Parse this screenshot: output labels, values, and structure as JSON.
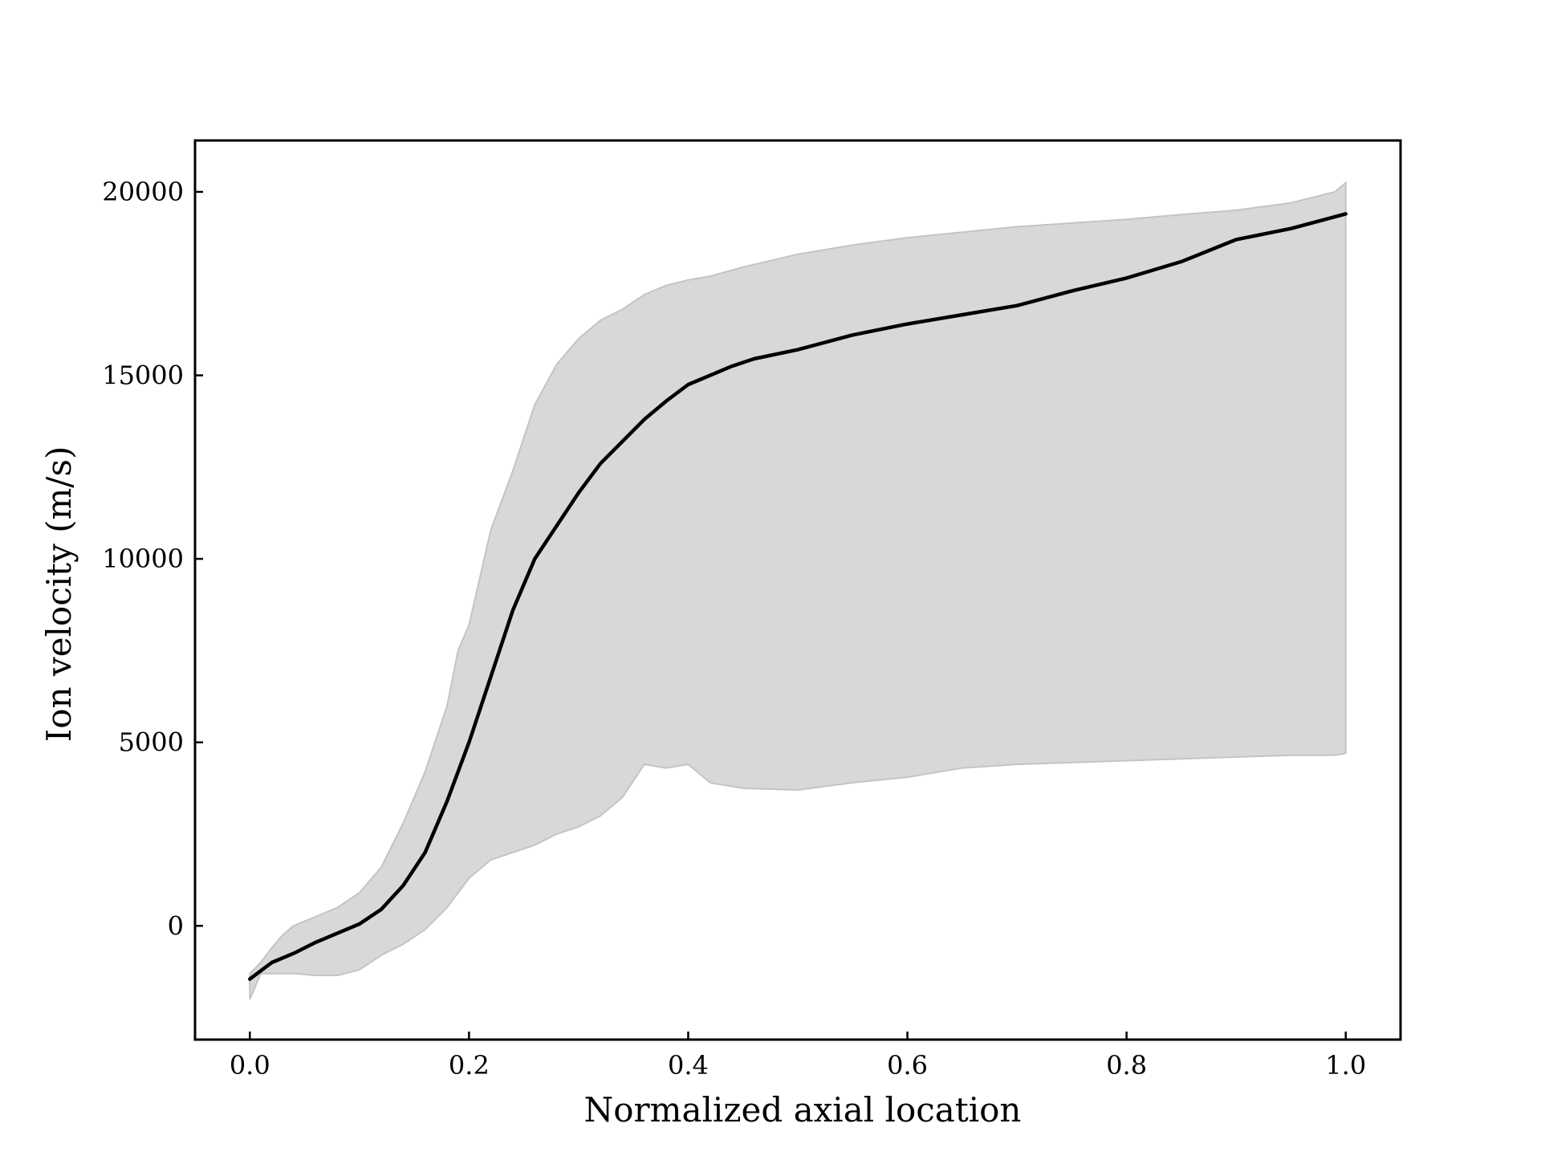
{
  "chart_data": {
    "type": "area",
    "title": "",
    "xlabel": "Normalized axial location",
    "ylabel": "Ion velocity (m/s)",
    "xlim": [
      -0.05,
      1.05
    ],
    "ylim": [
      -3100,
      21400
    ],
    "x_ticks": [
      0.0,
      0.2,
      0.4,
      0.6,
      0.8,
      1.0
    ],
    "x_tick_labels": [
      "0.0",
      "0.2",
      "0.4",
      "0.6",
      "0.8",
      "1.0"
    ],
    "y_ticks": [
      0,
      5000,
      10000,
      15000,
      20000
    ],
    "y_tick_labels": [
      "0",
      "5000",
      "10000",
      "15000",
      "20000"
    ],
    "grid": false,
    "legend": "none",
    "colors": {
      "line": "#000000",
      "band_fill": "#d8d8d8",
      "band_edge": "#c4c4c4",
      "axes": "#000000"
    },
    "series": [
      {
        "kind": "line",
        "x": [
          0.0,
          0.02,
          0.04,
          0.06,
          0.08,
          0.1,
          0.12,
          0.14,
          0.16,
          0.18,
          0.2,
          0.22,
          0.24,
          0.26,
          0.28,
          0.3,
          0.32,
          0.34,
          0.36,
          0.38,
          0.4,
          0.42,
          0.44,
          0.46,
          0.5,
          0.55,
          0.6,
          0.65,
          0.7,
          0.75,
          0.8,
          0.85,
          0.9,
          0.95,
          1.0
        ],
        "y": [
          -1450,
          -1000,
          -750,
          -450,
          -200,
          50,
          450,
          1100,
          2000,
          3400,
          5000,
          6800,
          8600,
          10000,
          10900,
          11800,
          12600,
          13200,
          13800,
          14300,
          14750,
          15000,
          15250,
          15450,
          15700,
          16100,
          16400,
          16650,
          16900,
          17300,
          17650,
          18100,
          18700,
          19000,
          19400
        ]
      },
      {
        "kind": "band",
        "x": [
          0.0,
          0.01,
          0.02,
          0.03,
          0.04,
          0.06,
          0.08,
          0.1,
          0.12,
          0.14,
          0.16,
          0.18,
          0.19,
          0.2,
          0.22,
          0.24,
          0.26,
          0.28,
          0.3,
          0.32,
          0.34,
          0.36,
          0.38,
          0.4,
          0.42,
          0.45,
          0.5,
          0.55,
          0.6,
          0.65,
          0.7,
          0.75,
          0.8,
          0.85,
          0.9,
          0.95,
          0.99,
          1.0
        ],
        "upper": [
          -1300,
          -1000,
          -600,
          -250,
          0,
          250,
          500,
          900,
          1600,
          2800,
          4200,
          6000,
          7500,
          8200,
          10800,
          12400,
          14200,
          15300,
          16000,
          16500,
          16800,
          17200,
          17450,
          17600,
          17700,
          17950,
          18300,
          18550,
          18750,
          18900,
          19050,
          19150,
          19250,
          19380,
          19500,
          19700,
          20000,
          20250
        ],
        "lower": [
          -2000,
          -1300,
          -1300,
          -1300,
          -1300,
          -1350,
          -1350,
          -1200,
          -800,
          -500,
          -100,
          500,
          900,
          1300,
          1800,
          2000,
          2200,
          2500,
          2700,
          3000,
          3500,
          4400,
          4300,
          4400,
          3900,
          3750,
          3700,
          3900,
          4050,
          4300,
          4400,
          4450,
          4500,
          4550,
          4600,
          4650,
          4650,
          4700
        ]
      }
    ]
  }
}
